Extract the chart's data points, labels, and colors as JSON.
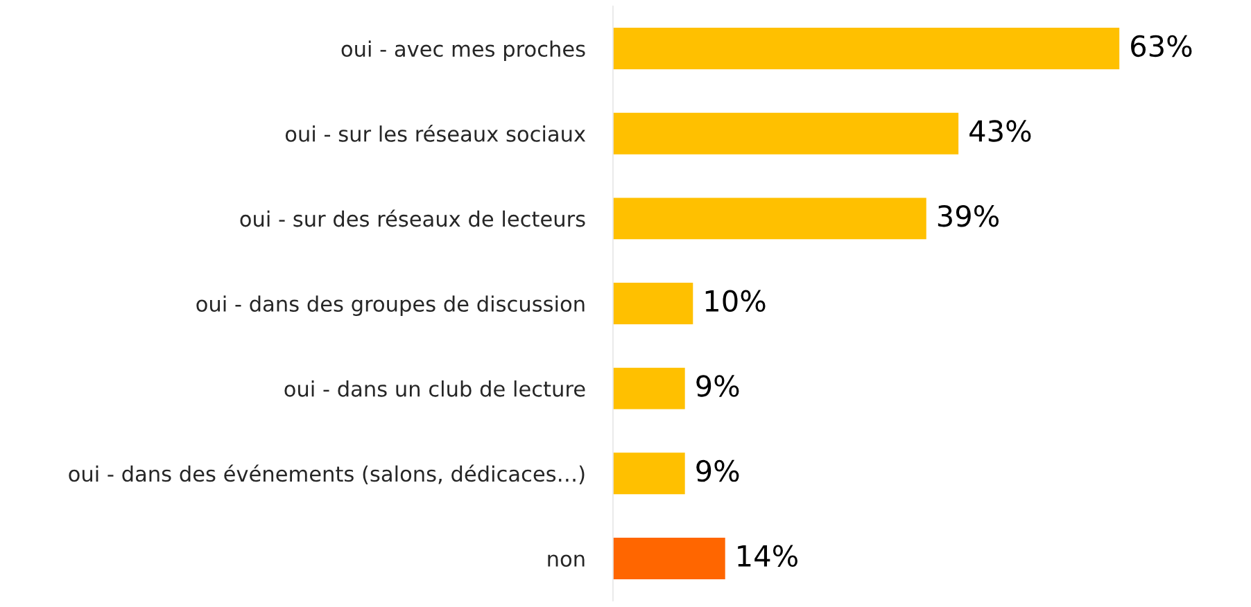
{
  "chart_data": {
    "type": "bar",
    "orientation": "horizontal",
    "categories": [
      "oui - avec mes proches",
      "oui - sur les réseaux sociaux",
      "oui - sur des réseaux de lecteurs",
      "oui - dans des groupes de discussion",
      "oui - dans un club de lecture",
      "oui - dans des événements (salons, dédicaces…)",
      "non"
    ],
    "values": [
      63,
      43,
      39,
      10,
      9,
      9,
      14
    ],
    "colors": [
      "#ffc000",
      "#ffc000",
      "#ffc000",
      "#ffc000",
      "#ffc000",
      "#ffc000",
      "#ff6600"
    ],
    "value_labels": [
      "63%",
      "43%",
      "39%",
      "10%",
      "9%",
      "9%",
      "14%"
    ],
    "tick_labels": "y",
    "grid": false,
    "legend": false
  }
}
